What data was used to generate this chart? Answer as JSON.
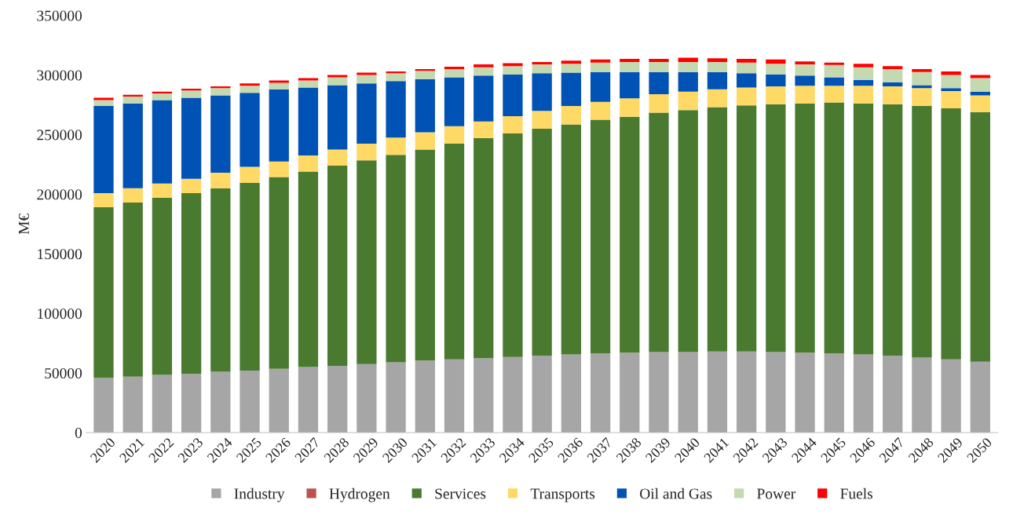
{
  "chart_data": {
    "type": "bar",
    "stacked": true,
    "ylabel": "M€",
    "categories": [
      "2020",
      "2021",
      "2022",
      "2023",
      "2024",
      "2025",
      "2026",
      "2027",
      "2028",
      "2029",
      "2030",
      "2031",
      "2032",
      "2033",
      "2034",
      "2035",
      "2036",
      "2037",
      "2038",
      "2039",
      "2040",
      "2041",
      "2042",
      "2043",
      "2044",
      "2045",
      "2046",
      "2047",
      "2048",
      "2049",
      "2050"
    ],
    "ylim": [
      0,
      350000
    ],
    "yticks": [
      0,
      50000,
      100000,
      150000,
      200000,
      250000,
      300000,
      350000
    ],
    "legend": "bottom",
    "grid": false,
    "series": [
      {
        "name": "Industry",
        "color": "#a6a6a6",
        "values": [
          46000,
          47000,
          48500,
          49500,
          51000,
          52000,
          53500,
          55000,
          56000,
          57500,
          59000,
          60500,
          61500,
          62500,
          63500,
          64500,
          65500,
          66500,
          67000,
          67500,
          67500,
          68000,
          68000,
          67500,
          67000,
          66500,
          65500,
          64500,
          63000,
          61500,
          59500
        ]
      },
      {
        "name": "Hydrogen",
        "color": "#c0504d",
        "values": [
          0,
          0,
          0,
          0,
          0,
          0,
          0,
          0,
          0,
          0,
          0,
          0,
          0,
          0,
          0,
          0,
          0,
          0,
          0,
          0,
          0,
          0,
          0,
          0,
          0,
          0,
          0,
          0,
          0,
          0,
          0
        ]
      },
      {
        "name": "Services",
        "color": "#4a7a2f",
        "values": [
          143000,
          146000,
          148500,
          151500,
          154000,
          157500,
          161000,
          164000,
          168000,
          171000,
          174000,
          177000,
          181000,
          184500,
          187500,
          190500,
          193000,
          196000,
          198000,
          201000,
          203000,
          205000,
          206500,
          208000,
          209000,
          210500,
          210500,
          211000,
          211000,
          210500,
          209500
        ]
      },
      {
        "name": "Transports",
        "color": "#ffd966",
        "values": [
          12000,
          12000,
          12000,
          12000,
          13000,
          13500,
          13000,
          13500,
          13500,
          14000,
          14500,
          14500,
          14500,
          14000,
          14500,
          15000,
          15500,
          15000,
          15500,
          15500,
          15500,
          15000,
          15000,
          15000,
          15000,
          14000,
          15000,
          15000,
          15000,
          14500,
          14000
        ]
      },
      {
        "name": "Oil and Gas",
        "color": "#0052b4",
        "values": [
          73000,
          71000,
          70000,
          68000,
          65000,
          62000,
          60500,
          57000,
          54000,
          50500,
          47500,
          44500,
          41000,
          38500,
          35000,
          31500,
          28000,
          25000,
          22000,
          18500,
          16500,
          14500,
          12000,
          10000,
          8500,
          7000,
          5000,
          3500,
          2500,
          2500,
          3000
        ]
      },
      {
        "name": "Power",
        "color": "#c5d9b1",
        "values": [
          5000,
          6000,
          5500,
          6000,
          6000,
          6000,
          5500,
          6000,
          6500,
          7000,
          6500,
          7000,
          7000,
          7000,
          7000,
          7500,
          7500,
          8000,
          8500,
          8500,
          8500,
          8500,
          9000,
          9000,
          9500,
          10500,
          10500,
          11000,
          11000,
          11000,
          11500
        ]
      },
      {
        "name": "Fuels",
        "color": "#ff0000",
        "values": [
          2000,
          1500,
          1500,
          1500,
          1500,
          2000,
          2000,
          2000,
          2000,
          2000,
          1500,
          1500,
          2000,
          2500,
          2500,
          2000,
          2500,
          2500,
          2500,
          2500,
          3500,
          3000,
          3000,
          3500,
          2500,
          2000,
          3000,
          2500,
          2500,
          3000,
          2500
        ]
      }
    ]
  }
}
